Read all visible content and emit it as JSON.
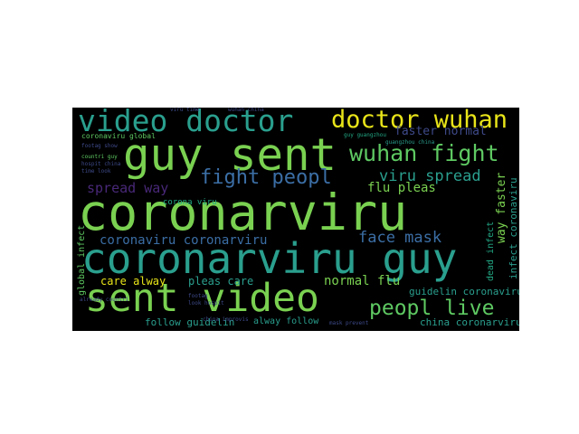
{
  "palette": {
    "background": "#000000",
    "green": "#7ad151",
    "lime": "#c8e020",
    "yellow": "#e8e419",
    "teal": "#2a9f8e",
    "cyan": "#22a884",
    "blue": "#3b6ea5",
    "indigo": "#3e4a89",
    "purple": "#482878",
    "mint": "#5ec962"
  },
  "words": [
    {
      "id": "w01",
      "text": "video doctor",
      "c": "teal"
    },
    {
      "id": "w02",
      "text": "doctor wuhan",
      "c": "yellow"
    },
    {
      "id": "w03",
      "text": "guy sent",
      "c": "green"
    },
    {
      "id": "w04",
      "text": "wuhan fight",
      "c": "mint"
    },
    {
      "id": "w05",
      "text": "fight peopl",
      "c": "blue"
    },
    {
      "id": "w06",
      "text": "viru spread",
      "c": "teal"
    },
    {
      "id": "w07",
      "text": "spread way",
      "c": "purple"
    },
    {
      "id": "w08",
      "text": "flu pleas",
      "c": "green"
    },
    {
      "id": "w09",
      "text": "faster normal",
      "c": "indigo"
    },
    {
      "id": "w10",
      "text": "coronarviru",
      "c": "green"
    },
    {
      "id": "w11",
      "text": "coronaviru coronarviru",
      "c": "blue"
    },
    {
      "id": "w12",
      "text": "face mask",
      "c": "blue"
    },
    {
      "id": "w13",
      "text": "coronarviru guy",
      "c": "teal"
    },
    {
      "id": "w14",
      "text": "sent video",
      "c": "green"
    },
    {
      "id": "w15",
      "text": "care alway",
      "c": "yellow"
    },
    {
      "id": "w16",
      "text": "pleas care",
      "c": "teal"
    },
    {
      "id": "w17",
      "text": "normal flu",
      "c": "green"
    },
    {
      "id": "w18",
      "text": "peopl live",
      "c": "mint"
    },
    {
      "id": "w19",
      "text": "guidelin coronaviru",
      "c": "teal"
    },
    {
      "id": "w20",
      "text": "follow guidelin",
      "c": "teal"
    },
    {
      "id": "w21",
      "text": "alway follow",
      "c": "teal"
    },
    {
      "id": "w22",
      "text": "china coronarviru",
      "c": "teal"
    },
    {
      "id": "w23",
      "text": "corona viru",
      "c": "cyan"
    },
    {
      "id": "w24",
      "text": "coronaviru global",
      "c": "mint"
    },
    {
      "id": "w25",
      "text": "viru time",
      "c": "indigo"
    },
    {
      "id": "w26",
      "text": "wuhan china",
      "c": "indigo"
    },
    {
      "id": "w27",
      "text": "guy guangzhou",
      "c": "cyan"
    },
    {
      "id": "w28",
      "text": "guangzhou china",
      "c": "teal"
    },
    {
      "id": "w29",
      "text": "footag show",
      "c": "indigo"
    },
    {
      "id": "w30",
      "text": "countri guy",
      "c": "mint"
    },
    {
      "id": "w31",
      "text": "hospit china",
      "c": "indigo"
    },
    {
      "id": "w32",
      "text": "time look",
      "c": "indigo"
    },
    {
      "id": "w33",
      "text": "global infect",
      "c": "mint"
    },
    {
      "id": "w34",
      "text": "way faster",
      "c": "green"
    },
    {
      "id": "w35",
      "text": "infect coronaviru",
      "c": "teal"
    },
    {
      "id": "w36",
      "text": "dead infect",
      "c": "cyan"
    },
    {
      "id": "w37",
      "text": "china improvis",
      "c": "indigo"
    },
    {
      "id": "w38",
      "text": "mask prevent",
      "c": "indigo"
    },
    {
      "id": "w39",
      "text": "look hospit",
      "c": "indigo"
    },
    {
      "id": "w40",
      "text": "footag",
      "c": "indigo"
    },
    {
      "id": "w41",
      "text": "already countri",
      "c": "indigo"
    }
  ]
}
